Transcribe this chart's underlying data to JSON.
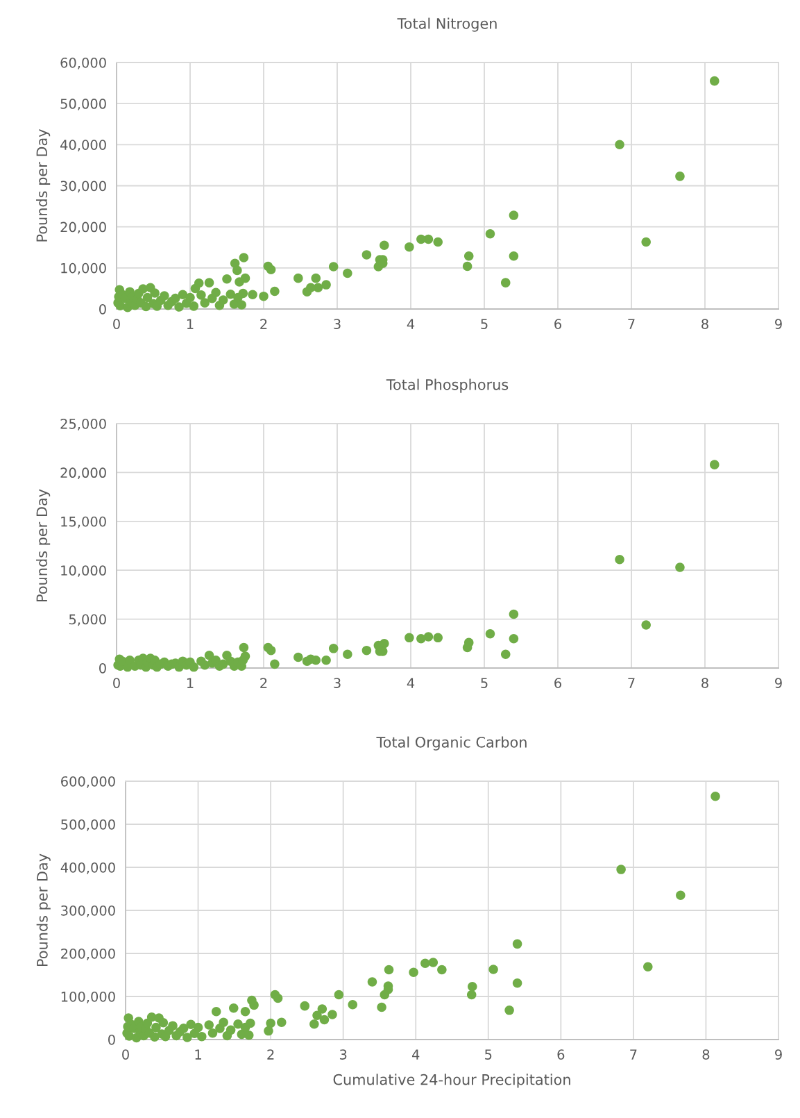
{
  "chart_data": [
    {
      "type": "scatter",
      "title": "Total Nitrogen",
      "ylabel": "Pounds per Day",
      "marker": "circle",
      "grid": true,
      "xlim": [
        0,
        9
      ],
      "xticks": [
        0,
        1,
        2,
        3,
        4,
        5,
        6,
        7,
        8,
        9
      ],
      "ylim": [
        0,
        60000
      ],
      "yticks": [
        0,
        {
          "value": 10000,
          "label": "10,000"
        },
        {
          "value": 20000,
          "label": "20,000"
        },
        {
          "value": 30000,
          "label": "30,000"
        },
        {
          "value": 40000,
          "label": "40,000"
        },
        {
          "value": 50000,
          "label": "50,000"
        },
        {
          "value": 60000,
          "label": "60,000"
        }
      ],
      "series": [
        {
          "color": "#70ad47",
          "x": [
            8.13,
            6.84,
            7.66,
            7.2,
            5.4,
            5.4,
            5.29,
            5.08,
            4.79,
            4.77,
            4.37,
            4.24,
            4.14,
            3.98,
            3.64,
            3.4,
            3.62,
            3.58,
            3.56,
            3.62,
            3.14,
            2.95,
            2.85,
            2.71,
            2.74,
            2.64,
            2.59,
            2.47,
            2.15,
            2.1,
            2.06,
            2.0,
            1.85,
            1.73,
            1.61,
            1.75,
            1.64,
            1.67,
            1.5,
            1.26,
            1.12,
            1.07,
            0.02,
            0.03,
            0.04,
            0.05,
            0.08,
            0.12,
            0.15,
            0.18,
            0.2,
            0.22,
            0.25,
            0.28,
            0.3,
            0.33,
            0.36,
            0.4,
            0.42,
            0.46,
            0.5,
            0.52,
            0.55,
            0.6,
            0.65,
            0.7,
            0.75,
            0.8,
            0.85,
            0.9,
            0.95,
            1.0,
            1.05,
            1.15,
            1.2,
            1.3,
            1.35,
            1.4,
            1.45,
            1.55,
            1.6,
            1.65,
            1.7,
            1.72
          ],
          "values": [
            55500,
            40000,
            32300,
            16300,
            22800,
            12900,
            6400,
            18300,
            12900,
            10400,
            16300,
            17000,
            17000,
            15100,
            15500,
            13200,
            12000,
            12000,
            10300,
            11100,
            8700,
            10300,
            5900,
            7500,
            5200,
            5200,
            4200,
            7500,
            4300,
            9600,
            10400,
            3100,
            3500,
            12500,
            11100,
            7500,
            9400,
            6600,
            7300,
            6400,
            6300,
            5000,
            1500,
            3000,
            4700,
            800,
            3500,
            2600,
            400,
            4200,
            1800,
            3000,
            900,
            2400,
            3800,
            1500,
            4900,
            600,
            2800,
            5200,
            1300,
            3900,
            700,
            2100,
            3200,
            900,
            1800,
            2600,
            500,
            3500,
            1400,
            2800,
            700,
            3400,
            1500,
            2600,
            4000,
            900,
            2200,
            3600,
            1200,
            2800,
            1000,
            3800
          ]
        }
      ]
    },
    {
      "type": "scatter",
      "title": "Total Phosphorus",
      "ylabel": "Pounds per Day",
      "marker": "circle",
      "grid": true,
      "xlim": [
        0,
        9
      ],
      "xticks": [
        0,
        1,
        2,
        3,
        4,
        5,
        6,
        7,
        8,
        9
      ],
      "ylim": [
        0,
        25000
      ],
      "yticks": [
        0,
        {
          "value": 5000,
          "label": "5,000"
        },
        {
          "value": 10000,
          "label": "10,000"
        },
        {
          "value": 15000,
          "label": "15,000"
        },
        {
          "value": 20000,
          "label": "20,000"
        },
        {
          "value": 25000,
          "label": "25,000"
        }
      ],
      "series": [
        {
          "color": "#70ad47",
          "x": [
            8.13,
            6.84,
            7.66,
            7.2,
            5.4,
            5.4,
            5.29,
            5.08,
            4.79,
            4.77,
            4.37,
            4.24,
            4.14,
            3.98,
            3.64,
            3.62,
            3.58,
            3.56,
            3.4,
            3.14,
            2.95,
            2.85,
            2.71,
            2.64,
            2.59,
            2.47,
            2.15,
            2.1,
            2.06,
            1.73,
            1.75,
            1.5,
            1.26,
            0.02,
            0.04,
            0.05,
            0.08,
            0.15,
            0.18,
            0.25,
            0.3,
            0.33,
            0.36,
            0.4,
            0.42,
            0.46,
            0.5,
            0.52,
            0.55,
            0.6,
            0.65,
            0.7,
            0.75,
            0.8,
            0.85,
            0.9,
            0.95,
            1.0,
            1.05,
            1.15,
            1.2,
            1.3,
            1.35,
            1.4,
            1.45,
            1.55,
            1.6,
            1.65,
            1.7,
            1.72
          ],
          "values": [
            20800,
            11100,
            10300,
            4400,
            5500,
            3000,
            1400,
            3500,
            2600,
            2100,
            3100,
            3200,
            3000,
            3100,
            2500,
            1700,
            1700,
            2300,
            1800,
            1400,
            2000,
            800,
            800,
            900,
            700,
            1100,
            400,
            1800,
            2100,
            2100,
            1200,
            1300,
            1300,
            300,
            900,
            200,
            700,
            100,
            800,
            200,
            800,
            300,
            1000,
            100,
            600,
            1000,
            300,
            800,
            100,
            400,
            600,
            200,
            400,
            500,
            100,
            700,
            300,
            600,
            100,
            700,
            300,
            500,
            800,
            200,
            400,
            700,
            200,
            600,
            200,
            800
          ]
        }
      ]
    },
    {
      "type": "scatter",
      "title": "Total Organic Carbon",
      "xlabel": "Cumulative 24-hour Precipitation",
      "ylabel": "Pounds per Day",
      "marker": "circle",
      "grid": true,
      "xlim": [
        0,
        9
      ],
      "xticks": [
        0,
        1,
        2,
        3,
        4,
        5,
        6,
        7,
        8,
        9
      ],
      "ylim": [
        0,
        600000
      ],
      "yticks": [
        0,
        {
          "value": 100000,
          "label": "100,000"
        },
        {
          "value": 200000,
          "label": "200,000"
        },
        {
          "value": 300000,
          "label": "300,000"
        },
        {
          "value": 400000,
          "label": "400,000"
        },
        {
          "value": 500000,
          "label": "500,000"
        },
        {
          "value": 600000,
          "label": "600,000"
        }
      ],
      "series": [
        {
          "color": "#70ad47",
          "x": [
            8.13,
            6.83,
            7.65,
            7.2,
            5.4,
            5.4,
            5.29,
            5.07,
            4.78,
            4.77,
            4.36,
            4.24,
            4.13,
            3.97,
            3.63,
            3.62,
            3.62,
            3.57,
            3.53,
            3.4,
            3.13,
            2.94,
            2.85,
            2.71,
            2.74,
            2.64,
            2.6,
            2.47,
            2.15,
            2.1,
            2.06,
            2.0,
            1.97,
            1.77,
            1.74,
            1.65,
            1.49,
            1.25,
            0.02,
            0.03,
            0.04,
            0.05,
            0.08,
            0.12,
            0.15,
            0.18,
            0.2,
            0.22,
            0.25,
            0.28,
            0.3,
            0.33,
            0.36,
            0.4,
            0.42,
            0.46,
            0.5,
            0.52,
            0.55,
            0.6,
            0.65,
            0.7,
            0.75,
            0.8,
            0.85,
            0.9,
            0.95,
            1.0,
            1.05,
            1.15,
            1.2,
            1.3,
            1.35,
            1.4,
            1.45,
            1.55,
            1.6,
            1.65,
            1.7,
            1.72
          ],
          "values": [
            565000,
            395000,
            335000,
            169000,
            222000,
            131000,
            68000,
            163000,
            123000,
            104000,
            162000,
            179000,
            177000,
            156000,
            162000,
            124000,
            116000,
            104000,
            75000,
            134000,
            81000,
            104000,
            58000,
            71000,
            46000,
            56000,
            36000,
            78000,
            40000,
            96000,
            104000,
            38000,
            20000,
            80000,
            91000,
            65000,
            73000,
            65000,
            15000,
            30000,
            50000,
            8000,
            35000,
            26000,
            4000,
            42000,
            18000,
            30000,
            9000,
            24000,
            38000,
            15000,
            52000,
            6000,
            28000,
            50000,
            13000,
            39000,
            7000,
            21000,
            32000,
            9000,
            18000,
            26000,
            5000,
            35000,
            14000,
            28000,
            7000,
            34000,
            15000,
            26000,
            40000,
            9000,
            22000,
            36000,
            12000,
            28000,
            10000,
            38000
          ]
        }
      ]
    }
  ]
}
